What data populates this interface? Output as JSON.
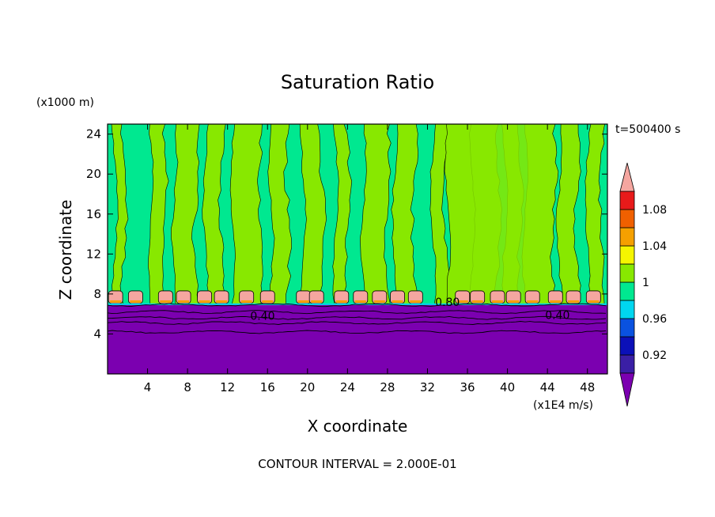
{
  "chart_data": {
    "type": "heatmap",
    "title": "Saturation Ratio",
    "xlabel": "X coordinate",
    "ylabel": "Z coordinate",
    "x_unit": "(x1E4 m/s)",
    "y_unit": "(x1000 m)",
    "time_label": "t=500400 s",
    "footer": "CONTOUR INTERVAL = 2.000E-01",
    "xlim": [
      0,
      50
    ],
    "ylim": [
      0,
      25
    ],
    "x_ticks": [
      "4",
      "8",
      "12",
      "16",
      "20",
      "24",
      "28",
      "32",
      "36",
      "40",
      "44",
      "48"
    ],
    "x_tick_values": [
      4,
      8,
      12,
      16,
      20,
      24,
      28,
      32,
      36,
      40,
      44,
      48
    ],
    "y_ticks": [
      "4",
      "8",
      "12",
      "16",
      "20",
      "24"
    ],
    "y_tick_values": [
      4,
      8,
      12,
      16,
      20,
      24
    ],
    "contour_labels": [
      {
        "text": "0.40",
        "x": 15.5,
        "z": 5.4
      },
      {
        "text": "0.80",
        "x": 34.0,
        "z": 6.8
      },
      {
        "text": "0.40",
        "x": 45.0,
        "z": 5.5
      }
    ],
    "colorbar": {
      "labels": [
        "0.92",
        "0.96",
        "1",
        "1.04",
        "1.08"
      ],
      "levels": [
        0.92,
        0.96,
        1.0,
        1.04,
        1.08
      ],
      "bin_colors": [
        "#7b00b0",
        "#3a1fa5",
        "#0b10b8",
        "#0a52e0",
        "#00d7f0",
        "#00e890",
        "#88e800",
        "#f5f500",
        "#f5a000",
        "#f06000",
        "#e81a1a",
        "#f5a6a0"
      ]
    },
    "layers": {
      "dry_base_top_z": 6.9,
      "moist_top_z": 25,
      "cloud_band_z": [
        7.0,
        8.3
      ]
    },
    "colors": {
      "dry": "#7b00b0",
      "near_saturation": "#00e890",
      "saturated": "#88e800",
      "supersaturated": "#f5a6a0"
    }
  }
}
